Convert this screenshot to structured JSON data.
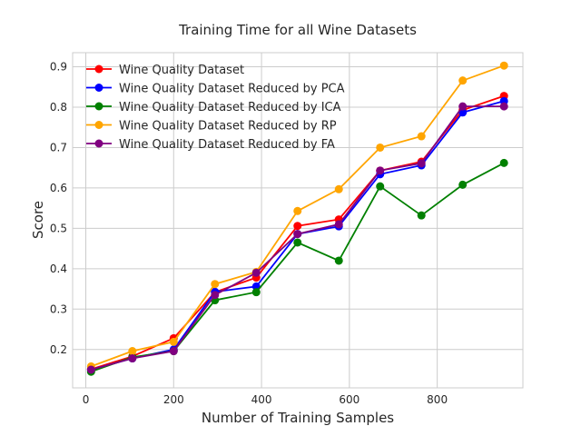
{
  "chart_data": {
    "type": "line",
    "title": "Training Time for all Wine Datasets",
    "xlabel": "Number of Training Samples",
    "ylabel": "Score",
    "xlim": [
      -30,
      995
    ],
    "ylim": [
      0.105,
      0.935
    ],
    "xticks": [
      0,
      200,
      400,
      600,
      800
    ],
    "yticks": [
      0.2,
      0.3,
      0.4,
      0.5,
      0.6,
      0.7,
      0.8,
      0.9
    ],
    "grid": true,
    "legend_position": "top-left",
    "x": [
      12,
      106,
      200,
      294,
      388,
      482,
      576,
      670,
      764,
      858,
      952
    ],
    "series": [
      {
        "name": "Wine Quality Dataset",
        "color": "#ff0000",
        "values": [
          0.151,
          0.183,
          0.228,
          0.342,
          0.378,
          0.506,
          0.522,
          0.643,
          0.665,
          0.793,
          0.828
        ]
      },
      {
        "name": "Wine Quality Dataset Reduced by PCA",
        "color": "#0000ff",
        "values": [
          0.15,
          0.178,
          0.2,
          0.343,
          0.356,
          0.486,
          0.505,
          0.634,
          0.656,
          0.787,
          0.815
        ]
      },
      {
        "name": "Wine Quality Dataset Reduced by ICA",
        "color": "#008000",
        "values": [
          0.145,
          0.181,
          0.196,
          0.322,
          0.342,
          0.465,
          0.42,
          0.604,
          0.532,
          0.608,
          0.662
        ]
      },
      {
        "name": "Wine Quality Dataset Reduced by RP",
        "color": "#ffa500",
        "values": [
          0.158,
          0.196,
          0.219,
          0.362,
          0.392,
          0.543,
          0.597,
          0.7,
          0.728,
          0.866,
          0.903
        ]
      },
      {
        "name": "Wine Quality Dataset Reduced by FA",
        "color": "#800080",
        "values": [
          0.15,
          0.178,
          0.196,
          0.335,
          0.39,
          0.486,
          0.51,
          0.643,
          0.661,
          0.802,
          0.802
        ]
      }
    ]
  }
}
